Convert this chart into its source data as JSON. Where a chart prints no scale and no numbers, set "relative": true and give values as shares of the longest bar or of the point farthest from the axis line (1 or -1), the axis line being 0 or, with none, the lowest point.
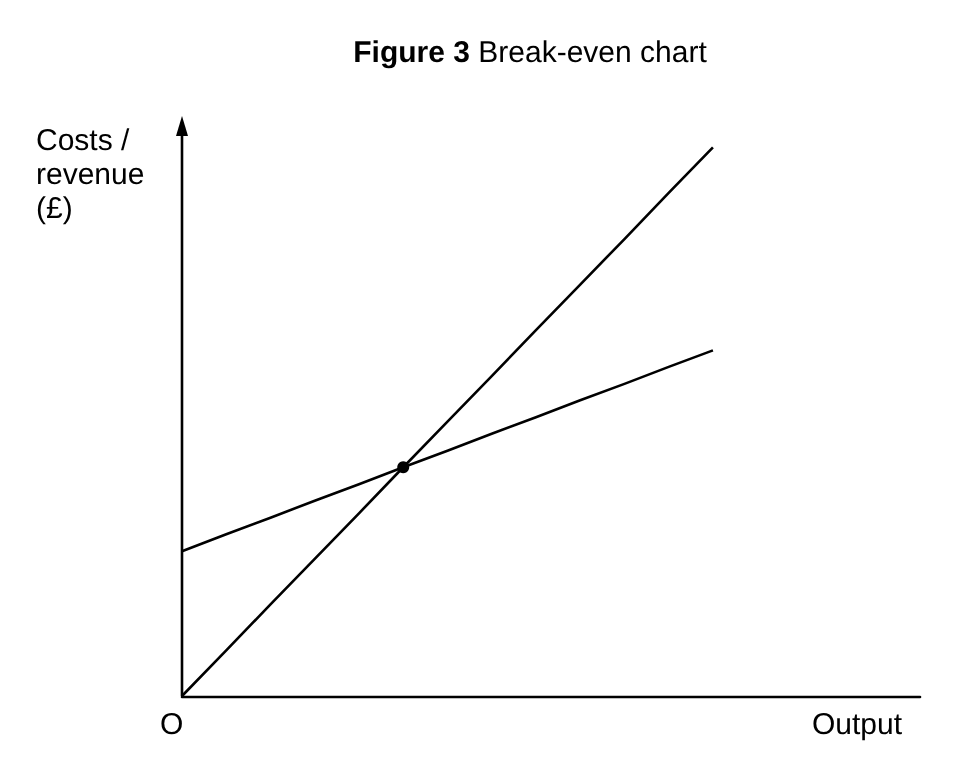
{
  "chart_data": {
    "type": "line",
    "title": "Figure 3 Break-even chart",
    "xlabel": "Output",
    "ylabel": "Costs / revenue (£)",
    "relative": true,
    "grid": false,
    "marker": "none",
    "line_style": "solid",
    "annotations": [
      "O"
    ],
    "categories": [
      null,
      null,
      null,
      null,
      null,
      null,
      null,
      null,
      null,
      null,
      null,
      null,
      null
    ],
    "series": [
      {
        "color": "#000000",
        "values": [
          0,
          0.083,
          0.167,
          0.25,
          0.333,
          0.417,
          0.5,
          0.583,
          0.667,
          0.75,
          0.833,
          0.917,
          1
        ]
      },
      {
        "color": "#000000",
        "values": [
          0.264,
          0.295,
          0.325,
          0.356,
          0.386,
          0.417,
          0.447,
          0.478,
          0.508,
          0.539,
          0.569,
          0.6,
          0.63
        ]
      },
      {
        "color": "#000000",
        "marker": "circle",
        "values": [
          null,
          null,
          null,
          null,
          null,
          0.417,
          null,
          null,
          null,
          null,
          null,
          null,
          null
        ]
      }
    ]
  }
}
